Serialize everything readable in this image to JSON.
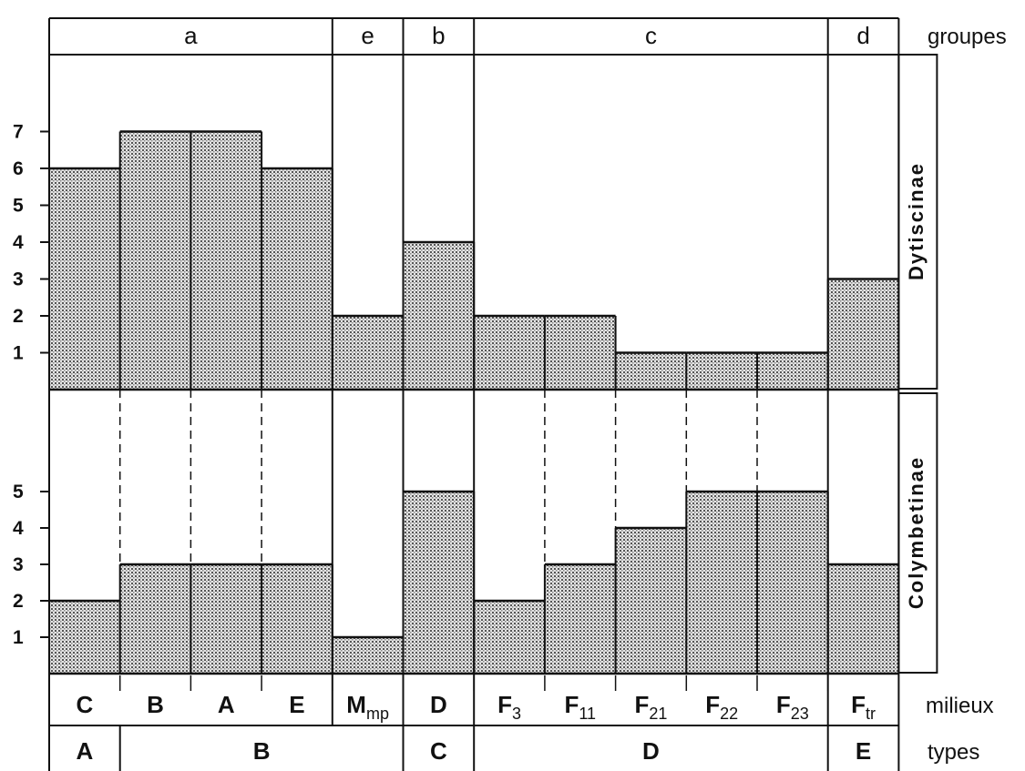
{
  "chart_data": {
    "type": "bar",
    "categories": [
      "C",
      "B",
      "A",
      "E",
      "Mmp",
      "D",
      "F3",
      "F11",
      "F21",
      "F22",
      "F23",
      "Ftr"
    ],
    "milieux": [
      {
        "main": "C",
        "sub": ""
      },
      {
        "main": "B",
        "sub": ""
      },
      {
        "main": "A",
        "sub": ""
      },
      {
        "main": "E",
        "sub": ""
      },
      {
        "main": "M",
        "sub": "mp"
      },
      {
        "main": "D",
        "sub": ""
      },
      {
        "main": "F",
        "sub": "3"
      },
      {
        "main": "F",
        "sub": "11"
      },
      {
        "main": "F",
        "sub": "21"
      },
      {
        "main": "F",
        "sub": "22"
      },
      {
        "main": "F",
        "sub": "23"
      },
      {
        "main": "F",
        "sub": "tr"
      }
    ],
    "groupes": [
      {
        "label": "a",
        "span": 4
      },
      {
        "label": "e",
        "span": 1
      },
      {
        "label": "b",
        "span": 1
      },
      {
        "label": "c",
        "span": 5
      },
      {
        "label": "d",
        "span": 1
      }
    ],
    "types": [
      {
        "label": "A",
        "span": 1
      },
      {
        "label": "B",
        "span": 4
      },
      {
        "label": "C",
        "span": 1
      },
      {
        "label": "D",
        "span": 5
      },
      {
        "label": "E",
        "span": 1
      }
    ],
    "series": [
      {
        "name": "Dytiscinae",
        "values": [
          6,
          7,
          7,
          6,
          2,
          4,
          2,
          2,
          1,
          1,
          1,
          3
        ],
        "yticks": [
          1,
          2,
          3,
          4,
          5,
          6,
          7
        ]
      },
      {
        "name": "Colymbetinae",
        "values": [
          2,
          3,
          3,
          3,
          1,
          5,
          2,
          3,
          4,
          5,
          5,
          3
        ],
        "yticks": [
          1,
          2,
          3,
          4,
          5
        ]
      }
    ],
    "row_labels": {
      "groupes": "groupes",
      "milieux": "milieux",
      "types": "types"
    }
  }
}
